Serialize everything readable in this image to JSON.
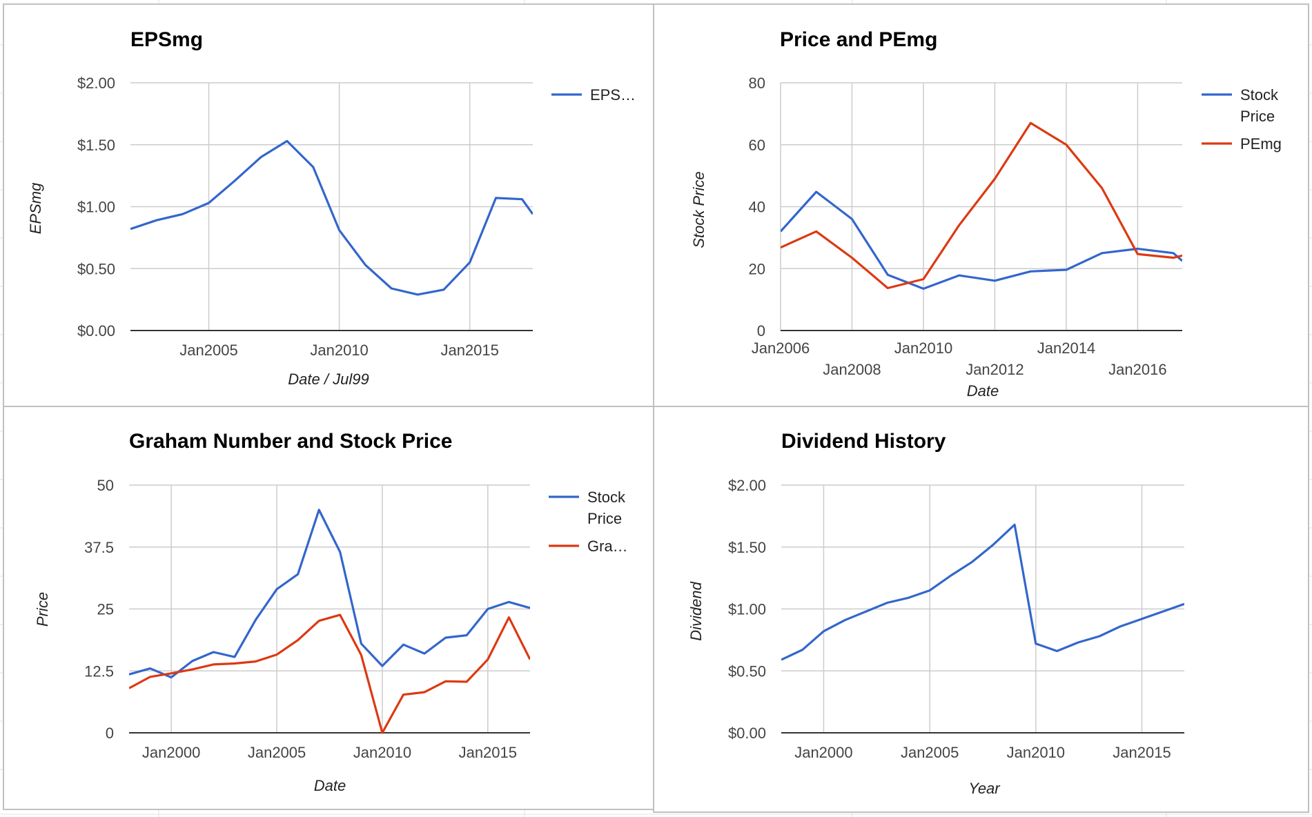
{
  "colors": {
    "blue": "#3366cc",
    "red": "#dc3912",
    "grid": "#cccccc",
    "axis": "#333333"
  },
  "chart_data": [
    {
      "type": "line",
      "title": "EPSmg",
      "xlabel": "Date / Jul99",
      "ylabel": "EPSmg",
      "ylim": [
        0,
        2
      ],
      "xlim": [
        "2002-01-01",
        "2017-06-01"
      ],
      "y_ticks": [
        "$0.00",
        "$0.50",
        "$1.00",
        "$1.50",
        "$2.00"
      ],
      "x_ticks": [
        {
          "date": "2005-01-01",
          "label": "Jan2005"
        },
        {
          "date": "2010-01-01",
          "label": "Jan2010"
        },
        {
          "date": "2015-01-01",
          "label": "Jan2015"
        }
      ],
      "grid": true,
      "legend_position": "right",
      "series": [
        {
          "name": "EPS…",
          "color": "#3366cc",
          "x": [
            "2002-01-01",
            "2003-01-01",
            "2004-01-01",
            "2005-01-01",
            "2006-01-01",
            "2007-01-01",
            "2008-01-01",
            "2009-01-01",
            "2010-01-01",
            "2011-01-01",
            "2012-01-01",
            "2013-01-01",
            "2014-01-01",
            "2015-01-01",
            "2016-01-01",
            "2017-01-01",
            "2017-06-01"
          ],
          "values": [
            0.82,
            0.89,
            0.94,
            1.03,
            1.21,
            1.4,
            1.53,
            1.32,
            0.81,
            0.53,
            0.34,
            0.29,
            0.33,
            0.55,
            1.07,
            1.06,
            0.94
          ]
        }
      ]
    },
    {
      "type": "line",
      "title": "Price and PEmg",
      "xlabel": "Date",
      "ylabel": "Stock Price",
      "ylim": [
        0,
        80
      ],
      "xlim": [
        "2006-01-01",
        "2017-04-01"
      ],
      "y_ticks": [
        "0",
        "20",
        "40",
        "60",
        "80"
      ],
      "x_ticks": [
        {
          "date": "2006-01-01",
          "label": "Jan2006",
          "row": 0
        },
        {
          "date": "2008-01-01",
          "label": "Jan2008",
          "row": 1
        },
        {
          "date": "2010-01-01",
          "label": "Jan2010",
          "row": 0
        },
        {
          "date": "2012-01-01",
          "label": "Jan2012",
          "row": 1
        },
        {
          "date": "2014-01-01",
          "label": "Jan2014",
          "row": 0
        },
        {
          "date": "2016-01-01",
          "label": "Jan2016",
          "row": 1
        }
      ],
      "grid": true,
      "legend_position": "right",
      "series": [
        {
          "name": "Stock Price",
          "color": "#3366cc",
          "x": [
            "2006-01-01",
            "2007-01-01",
            "2008-01-01",
            "2009-01-01",
            "2010-01-01",
            "2011-01-01",
            "2012-01-01",
            "2013-01-01",
            "2014-01-01",
            "2015-01-01",
            "2016-01-01",
            "2017-01-01",
            "2017-04-01"
          ],
          "values": [
            32.0,
            44.8,
            36.0,
            18.0,
            13.5,
            17.8,
            16.1,
            19.1,
            19.6,
            25.0,
            26.4,
            25.0,
            22.5
          ]
        },
        {
          "name": "PEmg",
          "color": "#dc3912",
          "x": [
            "2006-01-01",
            "2007-01-01",
            "2008-01-01",
            "2009-01-01",
            "2010-01-01",
            "2011-01-01",
            "2012-01-01",
            "2013-01-01",
            "2014-01-01",
            "2015-01-01",
            "2016-01-01",
            "2017-01-01",
            "2017-04-01"
          ],
          "values": [
            26.8,
            32.0,
            23.5,
            13.7,
            16.6,
            34.0,
            49.0,
            67.0,
            60.0,
            46.0,
            24.7,
            23.5,
            24.2
          ]
        }
      ]
    },
    {
      "type": "line",
      "title": "Graham Number and Stock Price",
      "xlabel": "Date",
      "ylabel": "Price",
      "ylim": [
        0,
        50
      ],
      "xlim": [
        "1998-01-01",
        "2017-01-01"
      ],
      "y_ticks": [
        "0",
        "12.5",
        "25",
        "37.5",
        "50"
      ],
      "x_ticks": [
        {
          "date": "2000-01-01",
          "label": "Jan2000"
        },
        {
          "date": "2005-01-01",
          "label": "Jan2005"
        },
        {
          "date": "2010-01-01",
          "label": "Jan2010"
        },
        {
          "date": "2015-01-01",
          "label": "Jan2015"
        }
      ],
      "grid": true,
      "legend_position": "right",
      "series": [
        {
          "name": "Stock Price",
          "color": "#3366cc",
          "x": [
            "1998-01-01",
            "1999-01-01",
            "2000-01-01",
            "2001-01-01",
            "2002-01-01",
            "2003-01-01",
            "2004-01-01",
            "2005-01-01",
            "2006-01-01",
            "2007-01-01",
            "2008-01-01",
            "2009-01-01",
            "2010-01-01",
            "2011-01-01",
            "2012-01-01",
            "2013-01-01",
            "2014-01-01",
            "2015-01-01",
            "2016-01-01",
            "2017-01-01"
          ],
          "values": [
            11.8,
            13.0,
            11.2,
            14.5,
            16.3,
            15.3,
            22.8,
            29.0,
            32.0,
            45.0,
            36.5,
            18.0,
            13.5,
            17.8,
            16.0,
            19.2,
            19.7,
            25.0,
            26.4,
            25.2
          ]
        },
        {
          "name": "Gra…",
          "color": "#dc3912",
          "x": [
            "1998-01-01",
            "1999-01-01",
            "2000-01-01",
            "2001-01-01",
            "2002-01-01",
            "2003-01-01",
            "2004-01-01",
            "2005-01-01",
            "2006-01-01",
            "2007-01-01",
            "2008-01-01",
            "2009-01-01",
            "2010-01-01",
            "2011-01-01",
            "2012-01-01",
            "2013-01-01",
            "2014-01-01",
            "2015-01-01",
            "2016-01-01",
            "2017-01-01"
          ],
          "values": [
            9.0,
            11.3,
            12.0,
            12.8,
            13.8,
            14.0,
            14.4,
            15.8,
            18.7,
            22.6,
            23.8,
            15.7,
            0.0,
            7.7,
            8.2,
            10.4,
            10.3,
            14.8,
            23.3,
            14.8
          ]
        }
      ]
    },
    {
      "type": "line",
      "title": "Dividend History",
      "xlabel": "Year",
      "ylabel": "Dividend",
      "ylim": [
        0,
        2
      ],
      "xlim": [
        "1998-01-01",
        "2017-01-01"
      ],
      "y_ticks": [
        "$0.00",
        "$0.50",
        "$1.00",
        "$1.50",
        "$2.00"
      ],
      "x_ticks": [
        {
          "date": "2000-01-01",
          "label": "Jan2000"
        },
        {
          "date": "2005-01-01",
          "label": "Jan2005"
        },
        {
          "date": "2010-01-01",
          "label": "Jan2010"
        },
        {
          "date": "2015-01-01",
          "label": "Jan2015"
        }
      ],
      "grid": true,
      "legend_position": "none",
      "series": [
        {
          "color": "#3366cc",
          "x": [
            "1998-01-01",
            "1999-01-01",
            "2000-01-01",
            "2001-01-01",
            "2002-01-01",
            "2003-01-01",
            "2004-01-01",
            "2005-01-01",
            "2006-01-01",
            "2007-01-01",
            "2008-01-01",
            "2009-01-01",
            "2010-01-01",
            "2011-01-01",
            "2012-01-01",
            "2013-01-01",
            "2014-01-01",
            "2015-01-01",
            "2016-01-01",
            "2017-01-01"
          ],
          "values": [
            0.59,
            0.67,
            0.82,
            0.91,
            0.98,
            1.05,
            1.09,
            1.15,
            1.27,
            1.38,
            1.52,
            1.68,
            0.72,
            0.66,
            0.73,
            0.78,
            0.86,
            0.92,
            0.98,
            1.04
          ]
        }
      ]
    }
  ]
}
